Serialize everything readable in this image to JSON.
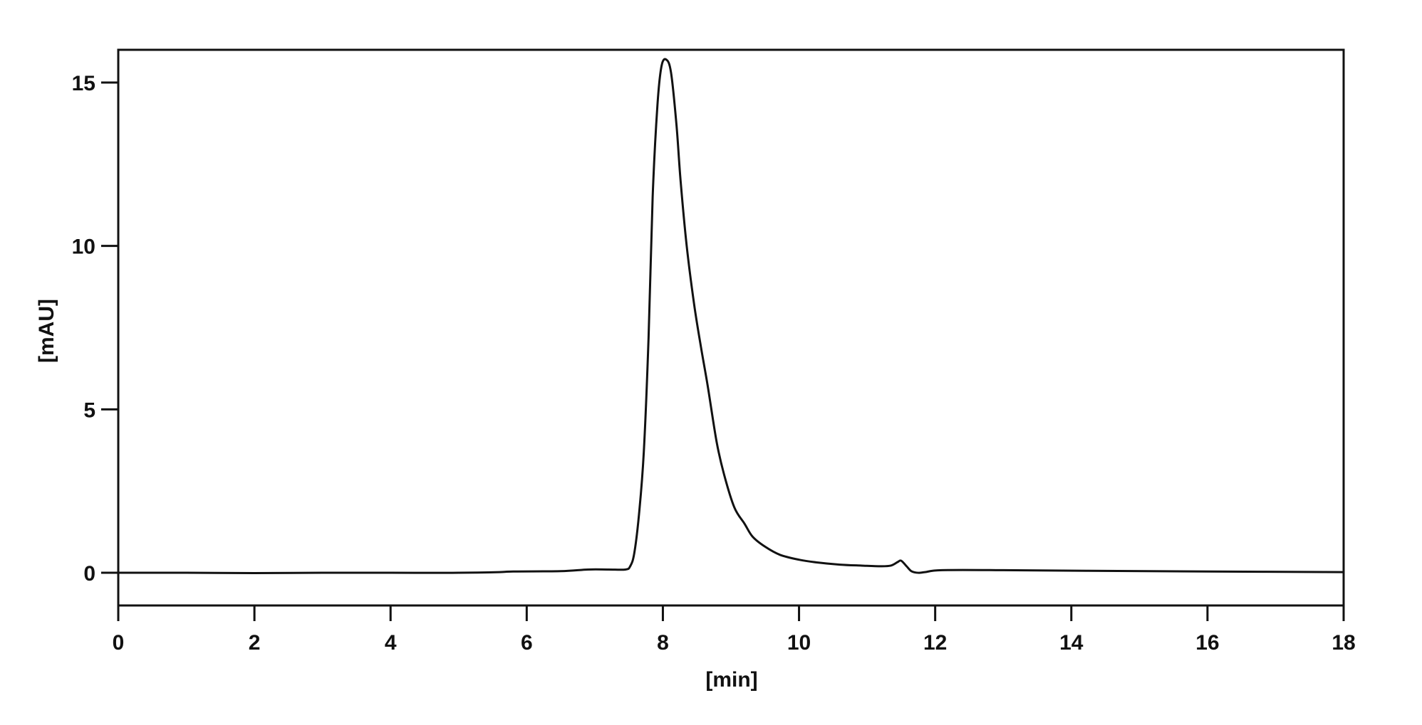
{
  "chart_data": {
    "type": "line",
    "title": "",
    "xlabel": "[min]",
    "ylabel": "[mAU]",
    "xlim": [
      0,
      18
    ],
    "ylim": [
      -1,
      16
    ],
    "xticks": [
      "0",
      "2",
      "4",
      "6",
      "8",
      "10",
      "12",
      "14",
      "16",
      "18"
    ],
    "yticks": [
      "0",
      "5",
      "10",
      "15"
    ],
    "grid": false,
    "line_color": "#111111",
    "series": [
      {
        "x": [
          0,
          1,
          2,
          3,
          4,
          5,
          5.6,
          5.8,
          6.5,
          6.9,
          7.2,
          7.45,
          7.52,
          7.58,
          7.65,
          7.72,
          7.79,
          7.85,
          7.92,
          7.98,
          8.05,
          8.12,
          8.2,
          8.26,
          8.35,
          8.46,
          8.56,
          8.66,
          8.79,
          8.9,
          9.05,
          9.2,
          9.32,
          9.5,
          9.72,
          10.0,
          10.25,
          10.6,
          10.92,
          11.2,
          11.35,
          11.45,
          11.5,
          11.58,
          11.65,
          11.75,
          11.85,
          12.1,
          13,
          14.25,
          16,
          18
        ],
        "y": [
          0,
          0,
          -0.01,
          0,
          0,
          0,
          0.02,
          0.04,
          0.05,
          0.1,
          0.1,
          0.1,
          0.2,
          0.6,
          1.8,
          3.7,
          7.2,
          11.5,
          14.3,
          15.5,
          15.7,
          15.3,
          13.7,
          12.0,
          10.0,
          8.2,
          6.9,
          5.7,
          4.0,
          3.0,
          2.0,
          1.5,
          1.1,
          0.8,
          0.55,
          0.4,
          0.32,
          0.25,
          0.22,
          0.2,
          0.22,
          0.33,
          0.37,
          0.2,
          0.05,
          0.0,
          0.02,
          0.08,
          0.08,
          0.06,
          0.04,
          0.02
        ]
      }
    ]
  }
}
